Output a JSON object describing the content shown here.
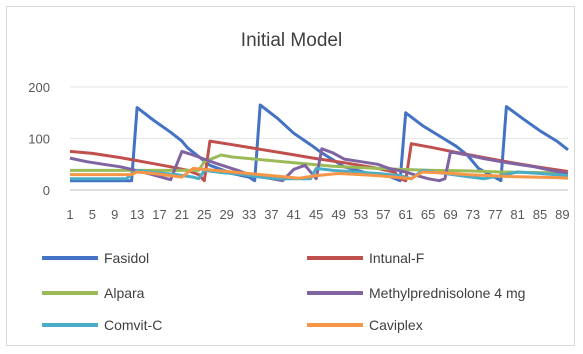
{
  "chart_data": {
    "type": "line",
    "title": "Initial Model",
    "xlabel": "",
    "ylabel": "",
    "xlim": [
      1,
      90
    ],
    "ylim": [
      0,
      200
    ],
    "y_ticks": [
      0,
      100,
      200
    ],
    "x_tick_labels": [
      "1",
      "5",
      "9",
      "13",
      "17",
      "21",
      "25",
      "29",
      "33",
      "37",
      "41",
      "45",
      "49",
      "53",
      "57",
      "61",
      "65",
      "69",
      "73",
      "77",
      "81",
      "85",
      "89"
    ],
    "grid": "horizontal",
    "legend_position": "bottom",
    "series": [
      {
        "name": "Fasidol",
        "color": "#4472c4",
        "points": [
          [
            1,
            18
          ],
          [
            12,
            18
          ],
          [
            13,
            160
          ],
          [
            16,
            135
          ],
          [
            19,
            112
          ],
          [
            21,
            95
          ],
          [
            22,
            82
          ],
          [
            26,
            48
          ],
          [
            30,
            32
          ],
          [
            33,
            25
          ],
          [
            34,
            18
          ],
          [
            35,
            165
          ],
          [
            38,
            140
          ],
          [
            41,
            110
          ],
          [
            44,
            88
          ],
          [
            46,
            72
          ],
          [
            50,
            45
          ],
          [
            54,
            33
          ],
          [
            58,
            27
          ],
          [
            60,
            18
          ],
          [
            61,
            150
          ],
          [
            64,
            125
          ],
          [
            67,
            105
          ],
          [
            70,
            85
          ],
          [
            72,
            68
          ],
          [
            74,
            42
          ],
          [
            76,
            30
          ],
          [
            78,
            18
          ],
          [
            79,
            162
          ],
          [
            82,
            138
          ],
          [
            85,
            115
          ],
          [
            88,
            95
          ],
          [
            90,
            78
          ]
        ]
      },
      {
        "name": "Intunal-F",
        "color": "#c0504d",
        "points": [
          [
            1,
            75
          ],
          [
            5,
            71
          ],
          [
            10,
            63
          ],
          [
            15,
            53
          ],
          [
            19,
            45
          ],
          [
            22,
            38
          ],
          [
            24,
            30
          ],
          [
            25,
            18
          ],
          [
            26,
            95
          ],
          [
            30,
            88
          ],
          [
            35,
            79
          ],
          [
            40,
            70
          ],
          [
            45,
            61
          ],
          [
            50,
            53
          ],
          [
            55,
            44
          ],
          [
            59,
            35
          ],
          [
            60,
            22
          ],
          [
            61,
            18
          ],
          [
            62,
            90
          ],
          [
            66,
            82
          ],
          [
            70,
            73
          ],
          [
            75,
            63
          ],
          [
            80,
            53
          ],
          [
            85,
            44
          ],
          [
            90,
            36
          ]
        ]
      },
      {
        "name": "Alpara",
        "color": "#9bbb59",
        "points": [
          [
            1,
            38
          ],
          [
            10,
            38
          ],
          [
            20,
            38
          ],
          [
            24,
            38
          ],
          [
            25,
            55
          ],
          [
            28,
            68
          ],
          [
            30,
            64
          ],
          [
            36,
            58
          ],
          [
            42,
            52
          ],
          [
            48,
            46
          ],
          [
            54,
            43
          ],
          [
            60,
            40
          ],
          [
            66,
            38
          ],
          [
            72,
            37
          ],
          [
            78,
            35
          ],
          [
            84,
            34
          ],
          [
            90,
            33
          ]
        ]
      },
      {
        "name": "Methylprednisolone 4 mg",
        "color": "#8064a2",
        "points": [
          [
            1,
            62
          ],
          [
            4,
            55
          ],
          [
            7,
            50
          ],
          [
            10,
            45
          ],
          [
            12,
            40
          ],
          [
            14,
            35
          ],
          [
            16,
            29
          ],
          [
            19,
            20
          ],
          [
            21,
            75
          ],
          [
            23,
            68
          ],
          [
            25,
            60
          ],
          [
            27,
            52
          ],
          [
            29,
            45
          ],
          [
            31,
            38
          ],
          [
            33,
            30
          ],
          [
            35,
            26
          ],
          [
            37,
            22
          ],
          [
            39,
            18
          ],
          [
            41,
            40
          ],
          [
            43,
            48
          ],
          [
            45,
            22
          ],
          [
            46,
            80
          ],
          [
            48,
            72
          ],
          [
            50,
            60
          ],
          [
            53,
            55
          ],
          [
            56,
            50
          ],
          [
            58,
            42
          ],
          [
            61,
            35
          ],
          [
            63,
            28
          ],
          [
            65,
            22
          ],
          [
            67,
            18
          ],
          [
            68,
            22
          ],
          [
            69,
            74
          ],
          [
            72,
            68
          ],
          [
            75,
            61
          ],
          [
            78,
            55
          ],
          [
            81,
            50
          ],
          [
            84,
            45
          ],
          [
            87,
            38
          ],
          [
            90,
            32
          ]
        ]
      },
      {
        "name": "Comvit-C",
        "color": "#4bacc6",
        "points": [
          [
            1,
            22
          ],
          [
            11,
            22
          ],
          [
            12,
            30
          ],
          [
            13,
            38
          ],
          [
            16,
            34
          ],
          [
            20,
            30
          ],
          [
            23,
            25
          ],
          [
            24,
            22
          ],
          [
            25,
            38
          ],
          [
            28,
            34
          ],
          [
            32,
            30
          ],
          [
            35,
            25
          ],
          [
            38,
            22
          ],
          [
            44,
            22
          ],
          [
            45,
            42
          ],
          [
            48,
            38
          ],
          [
            52,
            35
          ],
          [
            56,
            32
          ],
          [
            60,
            28
          ],
          [
            62,
            22
          ],
          [
            64,
            38
          ],
          [
            68,
            32
          ],
          [
            72,
            26
          ],
          [
            75,
            22
          ],
          [
            78,
            28
          ],
          [
            81,
            35
          ],
          [
            85,
            32
          ],
          [
            90,
            28
          ]
        ]
      },
      {
        "name": "Caviplex",
        "color": "#f79646",
        "points": [
          [
            1,
            30
          ],
          [
            12,
            30
          ],
          [
            13,
            35
          ],
          [
            16,
            32
          ],
          [
            19,
            28
          ],
          [
            21,
            25
          ],
          [
            23,
            42
          ],
          [
            27,
            38
          ],
          [
            31,
            34
          ],
          [
            35,
            30
          ],
          [
            39,
            26
          ],
          [
            42,
            23
          ],
          [
            45,
            28
          ],
          [
            49,
            32
          ],
          [
            53,
            30
          ],
          [
            57,
            27
          ],
          [
            60,
            24
          ],
          [
            62,
            22
          ],
          [
            64,
            35
          ],
          [
            68,
            33
          ],
          [
            72,
            30
          ],
          [
            76,
            28
          ],
          [
            80,
            26
          ],
          [
            84,
            25
          ],
          [
            88,
            24
          ],
          [
            90,
            23
          ]
        ]
      }
    ]
  }
}
